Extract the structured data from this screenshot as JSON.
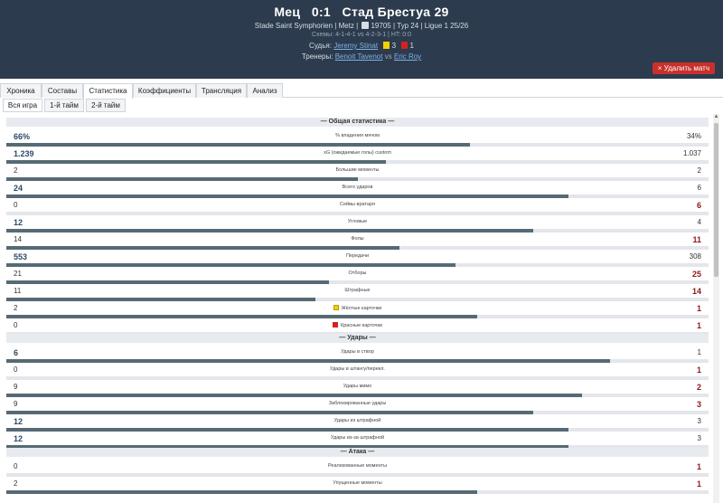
{
  "header": {
    "score_line": "Мец   0:1   Стад Брестуа 29",
    "venue": "Stade Saint Symphorien",
    "city": "Metz",
    "attendance": "19705",
    "round": "Тур 24",
    "league": "Ligue 1 25/26",
    "schemes": "Схемы: 4-1-4-1 vs 4-2-3-1",
    "halftime": "HT: 0:0",
    "referee_label": "Судья:",
    "referee_name": "Jeremy Stinat",
    "yellow_count": "3",
    "red_count": "1",
    "coaches_label": "Тренеры:",
    "home_coach": "Benoit Tavenot",
    "vs": "vs",
    "away_coach": "Eric Roy",
    "delete_button": "Удалить матч",
    "delete_icon": "×"
  },
  "tabs": [
    "Хроника",
    "Составы",
    "Статистика",
    "Коэффициенты",
    "Трансляция",
    "Анализ"
  ],
  "active_tab": "Статистика",
  "subtabs": [
    "Вся игра",
    "1-й тайм",
    "2-й тайм"
  ],
  "active_subtab": "Вся игра",
  "colors": {
    "bar_fill": "#566a75",
    "bar_track": "#e3e6ea",
    "home_bold": "#2c4a6a",
    "away_bold": "#8b1a1a"
  },
  "sections": [
    {
      "title": "— Общая статистика —",
      "rows": [
        {
          "name": "% владения мячом",
          "home": "66%",
          "away": "34%",
          "fill": 0.66,
          "lead": "home"
        },
        {
          "name": "xG (ожидаемые голы) custom",
          "home": "1.239",
          "away": "1.037",
          "fill": 0.54,
          "lead": "home"
        },
        {
          "name": "Большие моменты",
          "home": "2",
          "away": "2",
          "fill": 0.5,
          "lead": "none"
        },
        {
          "name": "Всего ударов",
          "home": "24",
          "away": "6",
          "fill": 0.8,
          "lead": "home"
        },
        {
          "name": "Сейвы вратаря",
          "home": "0",
          "away": "6",
          "fill": 0.0,
          "lead": "away"
        },
        {
          "name": "Угловые",
          "home": "12",
          "away": "4",
          "fill": 0.75,
          "lead": "home"
        },
        {
          "name": "Фолы",
          "home": "14",
          "away": "11",
          "fill": 0.56,
          "lead": "away"
        },
        {
          "name": "Передачи",
          "home": "553",
          "away": "308",
          "fill": 0.64,
          "lead": "home"
        },
        {
          "name": "Отборы",
          "home": "21",
          "away": "25",
          "fill": 0.46,
          "lead": "away"
        },
        {
          "name": "Штрафные",
          "home": "11",
          "away": "14",
          "fill": 0.44,
          "lead": "away"
        },
        {
          "name": "Жёлтые карточки",
          "home": "2",
          "away": "1",
          "fill": 0.67,
          "lead": "away",
          "icon": "yellow-card-icon"
        },
        {
          "name": "Красные карточки",
          "home": "0",
          "away": "1",
          "fill": 0.0,
          "lead": "away",
          "icon": "red-card-icon"
        }
      ]
    },
    {
      "title": "— Удары —",
      "rows": [
        {
          "name": "Удары в створ",
          "home": "6",
          "away": "1",
          "fill": 0.86,
          "lead": "home"
        },
        {
          "name": "Удары в штангу/перекл.",
          "home": "0",
          "away": "1",
          "fill": 0.0,
          "lead": "away"
        },
        {
          "name": "Удары мимо",
          "home": "9",
          "away": "2",
          "fill": 0.82,
          "lead": "away"
        },
        {
          "name": "Заблокированные удары",
          "home": "9",
          "away": "3",
          "fill": 0.75,
          "lead": "away"
        },
        {
          "name": "Удары из штрафной",
          "home": "12",
          "away": "3",
          "fill": 0.8,
          "lead": "home"
        },
        {
          "name": "Удары из-за штрафной",
          "home": "12",
          "away": "3",
          "fill": 0.8,
          "lead": "home"
        }
      ]
    },
    {
      "title": "— Атака —",
      "rows": [
        {
          "name": "Реализованные моменты",
          "home": "0",
          "away": "1",
          "fill": 0.0,
          "lead": "away"
        },
        {
          "name": "Упущенные моменты",
          "home": "2",
          "away": "1",
          "fill": 0.67,
          "lead": "away"
        }
      ]
    }
  ]
}
